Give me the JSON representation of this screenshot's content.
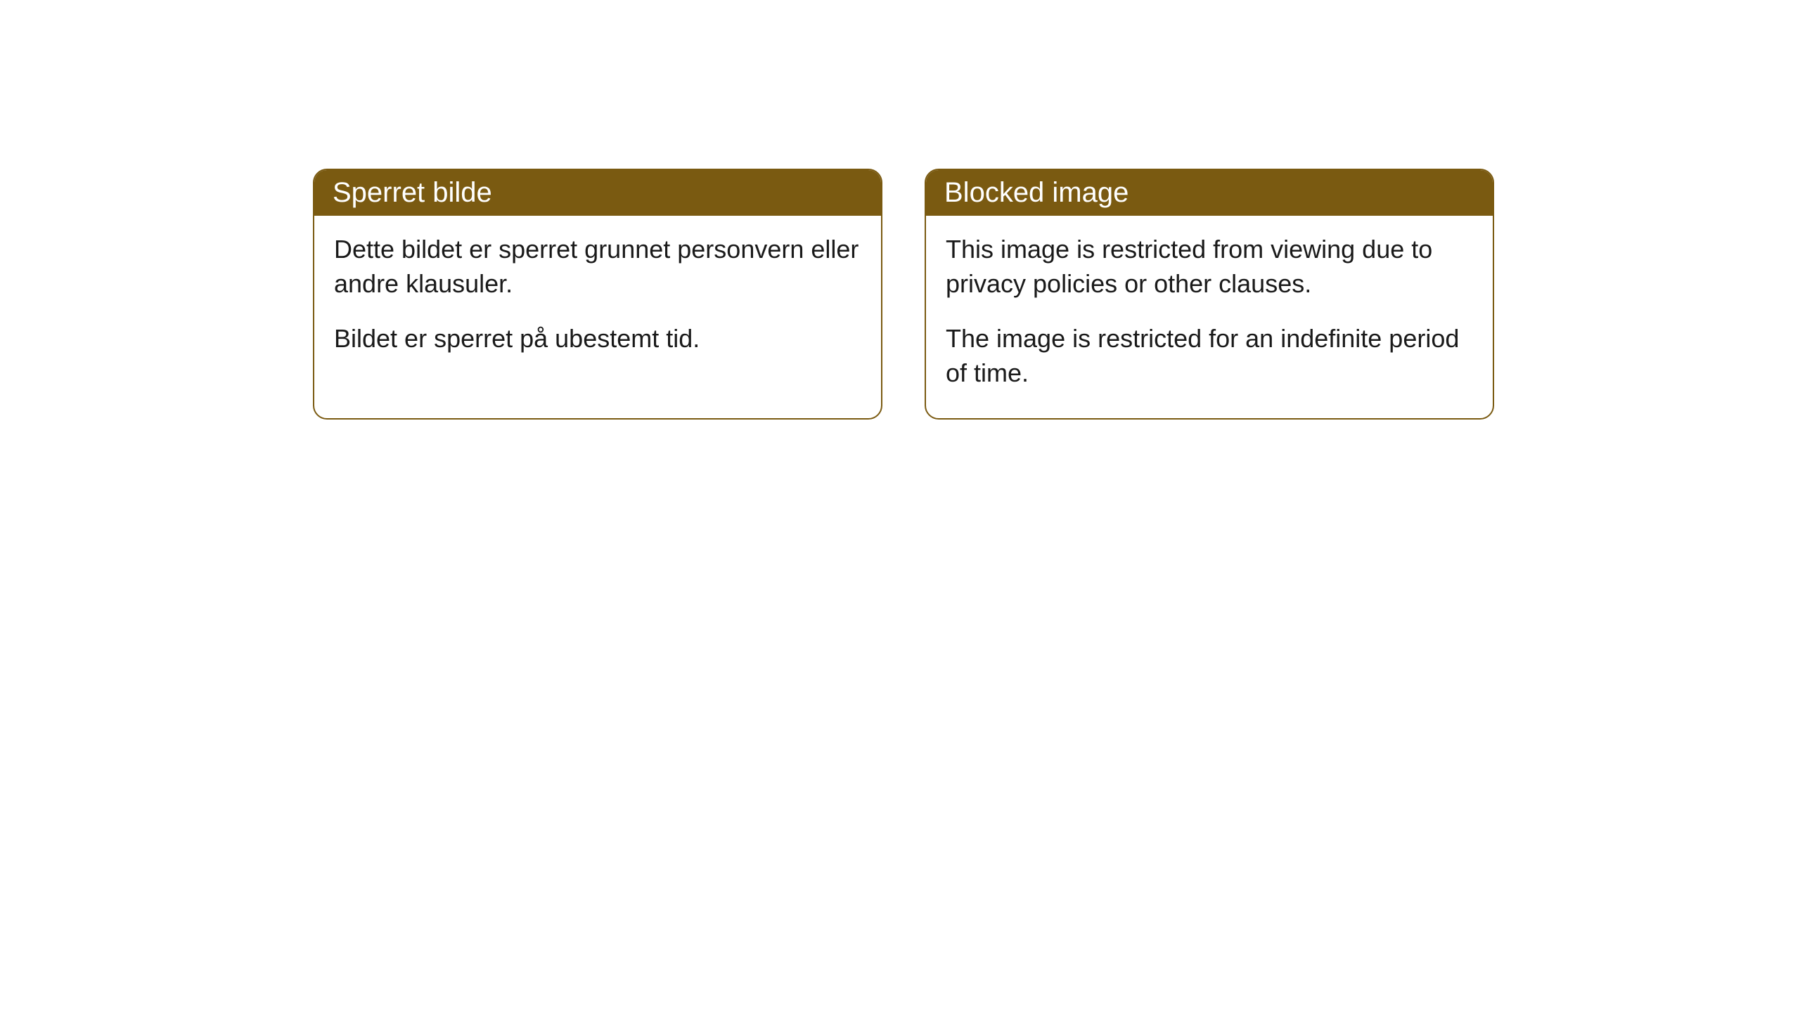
{
  "cards": [
    {
      "title": "Sperret bilde",
      "paragraph1": "Dette bildet er sperret grunnet personvern eller andre klausuler.",
      "paragraph2": "Bildet er sperret på ubestemt tid."
    },
    {
      "title": "Blocked image",
      "paragraph1": "This image is restricted from viewing due to privacy policies or other clauses.",
      "paragraph2": "The image is restricted for an indefinite period of time."
    }
  ],
  "styling": {
    "header_bg_color": "#7a5a11",
    "header_text_color": "#ffffff",
    "border_color": "#7a5a11",
    "border_radius": 20,
    "body_bg_color": "#ffffff",
    "body_text_color": "#1a1a1a",
    "title_fontsize": 40,
    "body_fontsize": 36
  }
}
